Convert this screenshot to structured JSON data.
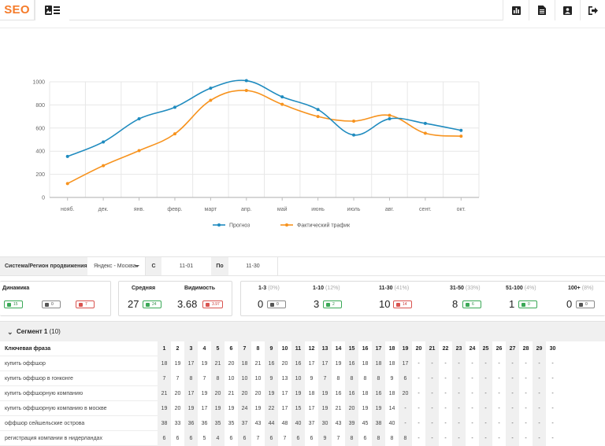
{
  "nav": {
    "brand": "SEO",
    "icons": [
      "image-list-icon",
      "bar-chart-icon",
      "document-icon",
      "user-card-icon",
      "logout-icon"
    ]
  },
  "chart_data": {
    "type": "line",
    "categories": [
      "нояб.",
      "дек.",
      "янв.",
      "февр.",
      "март",
      "апр.",
      "май",
      "июнь",
      "июль",
      "авг.",
      "сент.",
      "окт."
    ],
    "ylim": [
      0,
      1000
    ],
    "yticks": [
      0,
      200,
      400,
      600,
      800,
      1000
    ],
    "series": [
      {
        "name": "Прогноз",
        "color": "#1f8bbf",
        "values": [
          355,
          480,
          680,
          780,
          945,
          1010,
          870,
          760,
          540,
          680,
          640,
          580
        ]
      },
      {
        "name": "Фактический трафик",
        "color": "#f7931e",
        "values": [
          120,
          275,
          405,
          550,
          840,
          925,
          805,
          700,
          660,
          710,
          555,
          530
        ]
      }
    ]
  },
  "filters": {
    "system_label": "Система/Регион продвижения",
    "system_value": "Яндекс - Москва",
    "from_label": "С",
    "from_value": "11-01",
    "to_label": "По",
    "to_value": "11-30"
  },
  "summary": {
    "dynamics": {
      "title": "Динамика",
      "up": "15",
      "same": "0",
      "down": "7"
    },
    "average": {
      "title": "Средняя",
      "value": "27",
      "badge": "24"
    },
    "visibility": {
      "title": "Видимость",
      "value": "3.68",
      "badge": "3.97"
    },
    "ranges": [
      {
        "label": "1-3",
        "pct": "(0%)",
        "value": "0",
        "badge": "0",
        "tone": "gray"
      },
      {
        "label": "1-10",
        "pct": "(12%)",
        "value": "3",
        "badge": "2",
        "tone": "green"
      },
      {
        "label": "11-30",
        "pct": "(41%)",
        "value": "10",
        "badge": "14",
        "tone": "red"
      },
      {
        "label": "31-50",
        "pct": "(33%)",
        "value": "8",
        "badge": "6",
        "tone": "green"
      },
      {
        "label": "51-100",
        "pct": "(4%)",
        "value": "1",
        "badge": "0",
        "tone": "green"
      },
      {
        "label": "100+",
        "pct": "(8%)",
        "value": "0",
        "badge": "0",
        "tone": "gray"
      }
    ]
  },
  "segment": {
    "title": "Сегмент 1",
    "count": "(10)"
  },
  "table": {
    "keyword_header": "Ключевая фраза",
    "days": [
      "1",
      "2",
      "3",
      "4",
      "5",
      "6",
      "7",
      "8",
      "9",
      "10",
      "11",
      "12",
      "13",
      "14",
      "15",
      "16",
      "17",
      "18",
      "19",
      "20",
      "21",
      "22",
      "23",
      "24",
      "25",
      "26",
      "27",
      "28",
      "29",
      "30"
    ],
    "rows": [
      {
        "keyword": "купить оффшор",
        "values": [
          "18",
          "19",
          "17",
          "19",
          "21",
          "20",
          "18",
          "21",
          "16",
          "20",
          "16",
          "17",
          "17",
          "19",
          "16",
          "18",
          "18",
          "18",
          "17",
          "-",
          "-",
          "-",
          "-",
          "-",
          "-",
          "-",
          "-",
          "-",
          "-",
          "-"
        ]
      },
      {
        "keyword": "купить оффшор в гонконге",
        "values": [
          "7",
          "7",
          "8",
          "7",
          "8",
          "10",
          "10",
          "10",
          "9",
          "13",
          "10",
          "9",
          "7",
          "8",
          "8",
          "8",
          "8",
          "9",
          "6",
          "-",
          "-",
          "-",
          "-",
          "-",
          "-",
          "-",
          "-",
          "-",
          "-",
          "-"
        ]
      },
      {
        "keyword": "купить оффшорную компанию",
        "values": [
          "21",
          "20",
          "17",
          "19",
          "20",
          "21",
          "20",
          "20",
          "19",
          "17",
          "19",
          "18",
          "19",
          "16",
          "16",
          "18",
          "16",
          "18",
          "20",
          "-",
          "-",
          "-",
          "-",
          "-",
          "-",
          "-",
          "-",
          "-",
          "-",
          "-"
        ]
      },
      {
        "keyword": "купить оффшорную компанию в москве",
        "values": [
          "19",
          "20",
          "19",
          "17",
          "19",
          "19",
          "24",
          "19",
          "22",
          "17",
          "15",
          "17",
          "19",
          "21",
          "20",
          "19",
          "19",
          "14",
          "-",
          "-",
          "-",
          "-",
          "-",
          "-",
          "-",
          "-",
          "-",
          "-",
          "-",
          "-"
        ]
      },
      {
        "keyword": "оффшор сейшельские острова",
        "values": [
          "38",
          "33",
          "36",
          "36",
          "35",
          "35",
          "37",
          "43",
          "44",
          "48",
          "40",
          "37",
          "30",
          "43",
          "39",
          "45",
          "38",
          "40",
          "-",
          "-",
          "-",
          "-",
          "-",
          "-",
          "-",
          "-",
          "-",
          "-",
          "-",
          "-"
        ]
      },
      {
        "keyword": "регистрация компании в нидерландах",
        "values": [
          "6",
          "6",
          "6",
          "5",
          "4",
          "6",
          "6",
          "7",
          "6",
          "7",
          "6",
          "6",
          "9",
          "7",
          "8",
          "6",
          "8",
          "8",
          "8",
          "-",
          "-",
          "-",
          "-",
          "-",
          "-",
          "-",
          "-",
          "-",
          "-",
          "-"
        ]
      }
    ]
  }
}
